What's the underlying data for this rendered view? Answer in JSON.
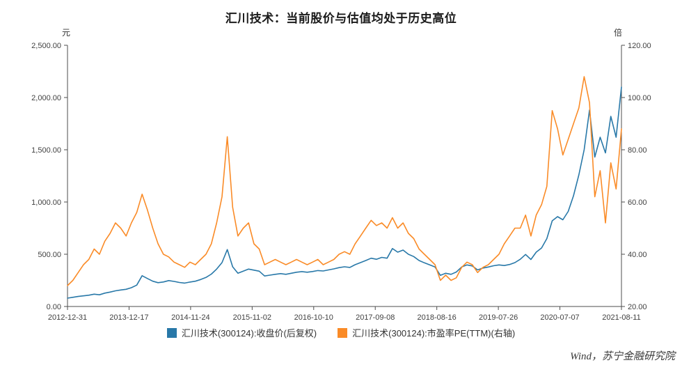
{
  "title": "汇川技术：当前股价与估值均处于历史高位",
  "watermark": "Wind，苏宁金融研究院",
  "colors": {
    "price_series": "#2878a8",
    "pe_series": "#fa8b27",
    "axis": "#4d4d4d",
    "text": "#404040"
  },
  "chart_data": {
    "type": "line",
    "title": "汇川技术：当前股价与估值均处于历史高位",
    "grid": false,
    "legend_position": "bottom",
    "x_tick_labels": [
      "2012-12-31",
      "2013-12-17",
      "2014-11-24",
      "2015-11-02",
      "2016-10-10",
      "2017-09-08",
      "2018-08-16",
      "2019-07-26",
      "2020-07-07",
      "2021-08-11"
    ],
    "left_axis": {
      "unit": "元",
      "min": 0,
      "max": 2500,
      "tick_labels": [
        "0.00",
        "500.00",
        "1,000.00",
        "1,500.00",
        "2,000.00",
        "2,500.00"
      ]
    },
    "right_axis": {
      "unit": "倍",
      "min": 20,
      "max": 120,
      "tick_labels": [
        "20.00",
        "40.00",
        "60.00",
        "80.00",
        "100.00",
        "120.00"
      ]
    },
    "sampling_note": "values sampled monthly from 2012-12 to 2021-08, estimated from plot",
    "series": [
      {
        "name": "汇川技术(300124):收盘价(后复权)",
        "axis": "left",
        "color": "#2878a8",
        "values": [
          80,
          88,
          96,
          102,
          108,
          118,
          112,
          128,
          138,
          150,
          158,
          165,
          180,
          205,
          295,
          268,
          242,
          228,
          235,
          248,
          240,
          230,
          224,
          234,
          242,
          258,
          278,
          310,
          358,
          420,
          545,
          380,
          318,
          338,
          358,
          348,
          338,
          292,
          300,
          308,
          315,
          308,
          318,
          328,
          334,
          328,
          335,
          344,
          340,
          350,
          360,
          372,
          380,
          374,
          400,
          420,
          440,
          462,
          452,
          470,
          462,
          555,
          520,
          540,
          500,
          478,
          440,
          418,
          398,
          378,
          298,
          318,
          308,
          330,
          378,
          398,
          388,
          350,
          368,
          378,
          390,
          398,
          392,
          402,
          420,
          452,
          498,
          450,
          520,
          560,
          650,
          820,
          860,
          830,
          910,
          1060,
          1260,
          1500,
          1880,
          1430,
          1620,
          1470,
          1820,
          1620,
          2100
        ]
      },
      {
        "name": "汇川技术(300124):市盈率PE(TTM)(右轴)",
        "axis": "right",
        "color": "#fa8b27",
        "values": [
          28,
          30,
          33,
          36,
          38,
          42,
          40,
          45,
          48,
          52,
          50,
          47,
          52,
          56,
          63,
          57,
          50,
          44,
          40,
          39,
          37,
          36,
          35,
          37,
          36,
          38,
          40,
          44,
          52,
          62,
          85,
          58,
          47,
          50,
          52,
          44,
          42,
          36,
          37,
          38,
          37,
          36,
          37,
          38,
          37,
          36,
          37,
          38,
          36,
          37,
          38,
          40,
          41,
          40,
          44,
          47,
          50,
          53,
          51,
          52,
          50,
          54,
          50,
          52,
          48,
          46,
          42,
          40,
          38,
          36,
          30,
          32,
          30,
          31,
          35,
          37,
          36,
          33,
          35,
          36,
          38,
          40,
          44,
          47,
          50,
          50,
          55,
          47,
          55,
          59,
          66,
          95,
          88,
          78,
          84,
          90,
          96,
          108,
          98,
          62,
          72,
          52,
          75,
          65,
          88
        ]
      }
    ]
  }
}
